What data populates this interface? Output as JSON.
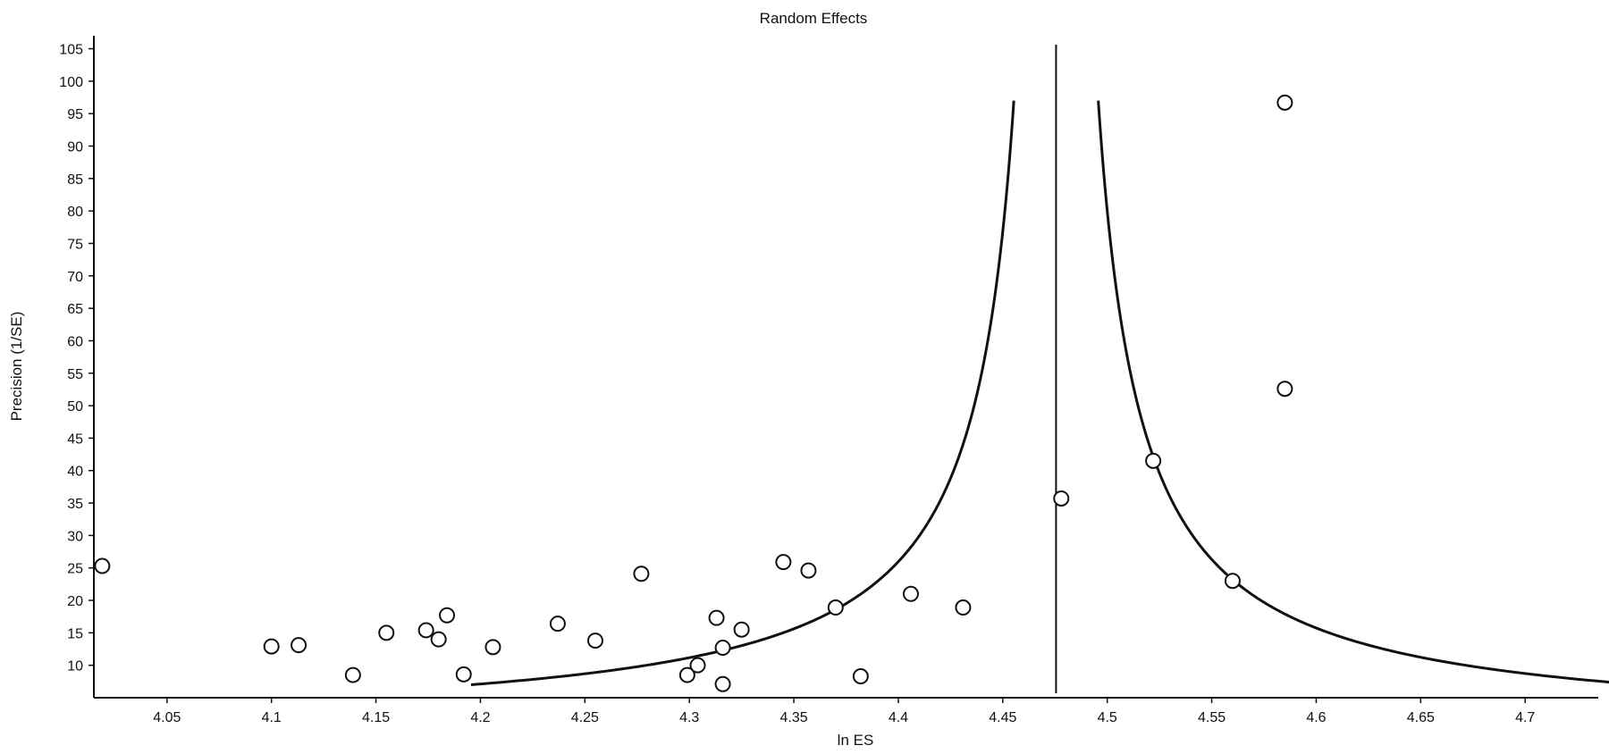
{
  "chart_data": {
    "type": "scatter",
    "title": "Random Effects",
    "xlabel": "ln ES",
    "ylabel": "Precision (1/SE)",
    "xlim": [
      4.015,
      4.735
    ],
    "ylim": [
      5,
      107
    ],
    "xticks": [
      4.05,
      4.1,
      4.15,
      4.2,
      4.25,
      4.3,
      4.35,
      4.4,
      4.45,
      4.5,
      4.55,
      4.6,
      4.65,
      4.7
    ],
    "xtick_labels": [
      "4.05",
      "4.1",
      "4.15",
      "4.2",
      "4.25",
      "4.3",
      "4.35",
      "4.4",
      "4.45",
      "4.5",
      "4.55",
      "4.6",
      "4.65",
      "4.7"
    ],
    "yticks": [
      10,
      15,
      20,
      25,
      30,
      35,
      40,
      45,
      50,
      55,
      60,
      65,
      70,
      75,
      80,
      85,
      90,
      95,
      100,
      105
    ],
    "ytick_labels": [
      "10",
      "15",
      "20",
      "25",
      "30",
      "35",
      "40",
      "45",
      "50",
      "55",
      "60",
      "65",
      "70",
      "75",
      "80",
      "85",
      "90",
      "95",
      "100",
      "105"
    ],
    "grid": false,
    "legend": "none",
    "pooled_estimate": 4.4755,
    "funnel_half_width_factor": 1.96,
    "funnel_y_range": [
      7,
      97
    ],
    "points": [
      {
        "x": 4.019,
        "y": 25.3
      },
      {
        "x": 4.1,
        "y": 12.9
      },
      {
        "x": 4.113,
        "y": 13.1
      },
      {
        "x": 4.139,
        "y": 8.5
      },
      {
        "x": 4.155,
        "y": 15.0
      },
      {
        "x": 4.174,
        "y": 15.4
      },
      {
        "x": 4.18,
        "y": 14.0
      },
      {
        "x": 4.184,
        "y": 17.7
      },
      {
        "x": 4.192,
        "y": 8.6
      },
      {
        "x": 4.206,
        "y": 12.8
      },
      {
        "x": 4.237,
        "y": 16.4
      },
      {
        "x": 4.255,
        "y": 13.8
      },
      {
        "x": 4.277,
        "y": 24.1
      },
      {
        "x": 4.299,
        "y": 8.5
      },
      {
        "x": 4.304,
        "y": 10.0
      },
      {
        "x": 4.313,
        "y": 17.3
      },
      {
        "x": 4.316,
        "y": 12.7
      },
      {
        "x": 4.316,
        "y": 7.1
      },
      {
        "x": 4.325,
        "y": 15.5
      },
      {
        "x": 4.345,
        "y": 25.9
      },
      {
        "x": 4.357,
        "y": 24.6
      },
      {
        "x": 4.37,
        "y": 18.9
      },
      {
        "x": 4.382,
        "y": 8.3
      },
      {
        "x": 4.406,
        "y": 21.0
      },
      {
        "x": 4.431,
        "y": 18.9
      },
      {
        "x": 4.478,
        "y": 35.7
      },
      {
        "x": 4.522,
        "y": 41.5
      },
      {
        "x": 4.56,
        "y": 23.0
      },
      {
        "x": 4.585,
        "y": 96.7
      },
      {
        "x": 4.585,
        "y": 52.6
      }
    ]
  },
  "colors": {
    "background": "#ffffff",
    "axis": "#111111",
    "marker_fill": "#ffffff",
    "marker_stroke": "#111111",
    "funnel": "#111111"
  }
}
